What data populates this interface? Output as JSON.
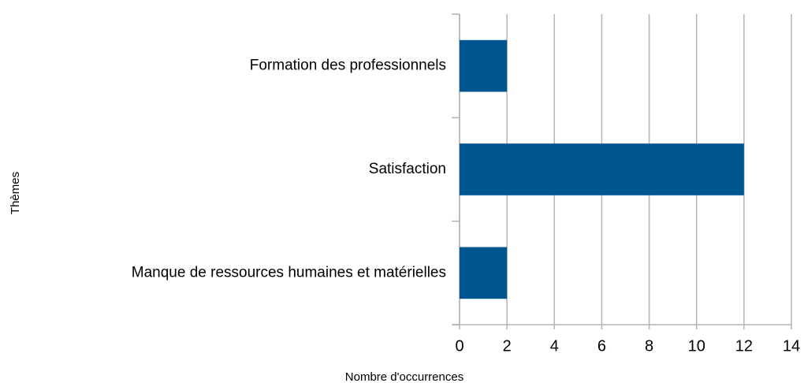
{
  "chart_data": {
    "type": "bar",
    "orientation": "horizontal",
    "x_label": "Nombre  d'occurrences",
    "y_label": "Thèmes",
    "categories": [
      "Formation des professionnels",
      "Satisfaction",
      "Manque de ressources humaines et matérielles"
    ],
    "values": [
      2,
      12,
      2
    ],
    "color": "#00568f",
    "xlim": [
      0,
      14
    ],
    "xticks": [
      0,
      2,
      4,
      6,
      8,
      10,
      12,
      14
    ],
    "grid": true
  }
}
